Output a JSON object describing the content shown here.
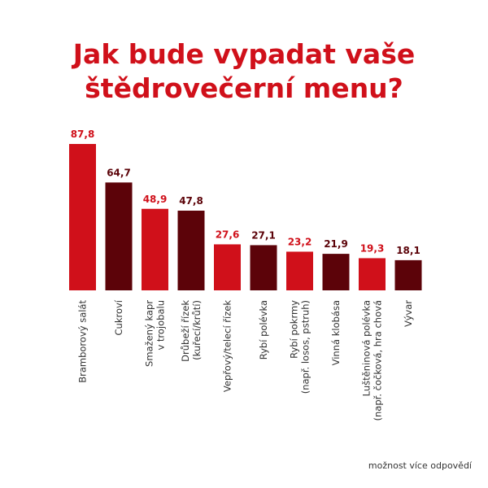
{
  "title_lines": [
    "Jak bude vypadat vaše",
    "štědrovečerní menu?"
  ],
  "footnote": "možnost více odpovědí",
  "colors": {
    "red": "#d0101a",
    "dark": "#5c0309",
    "title": "#d0101a"
  },
  "chart_data": {
    "type": "bar",
    "title": "Jak bude vypadat vaše štědrovečerní menu?",
    "categories": [
      [
        "Bramborový salát"
      ],
      [
        "Cukroví"
      ],
      [
        "Smažený kapr",
        "v trojobalu"
      ],
      [
        "Drůbeží řízek",
        "(kuřecí/krůtí)"
      ],
      [
        "Vepřový/telecí řízek"
      ],
      [
        "Rybí polévka"
      ],
      [
        "Rybí pokrmy",
        "(např. losos, pstruh)"
      ],
      [
        "Vinná klobása"
      ],
      [
        "Luštěninová polévka",
        "(např. čočková, hra chová"
      ],
      [
        "Vývar"
      ]
    ],
    "values": [
      87.8,
      64.7,
      48.9,
      47.8,
      27.6,
      27.1,
      23.2,
      21.9,
      19.3,
      18.1
    ],
    "value_labels": [
      "87,8",
      "64,7",
      "48,9",
      "47,8",
      "27,6",
      "27,1",
      "23,2",
      "21,9",
      "19,3",
      "18,1"
    ],
    "bar_colors": [
      "red",
      "dark",
      "red",
      "dark",
      "red",
      "dark",
      "red",
      "dark",
      "red",
      "dark"
    ],
    "ylim": [
      0,
      100
    ],
    "grid": false,
    "legend": "none"
  }
}
